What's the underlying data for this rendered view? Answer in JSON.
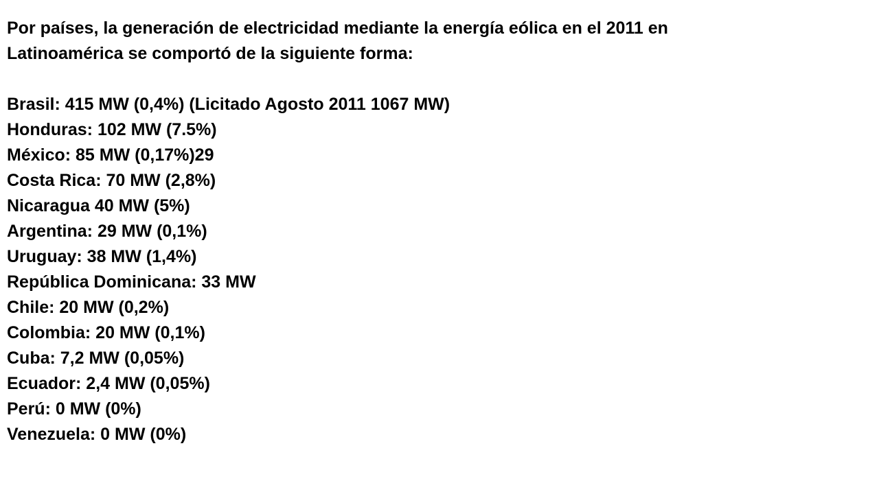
{
  "heading": {
    "lines": [
      "Por países, la generación de electricidad mediante la energía eólica en el 2011 en",
      "Latinoamérica se comportó de la siguiente forma:"
    ]
  },
  "items": [
    "Brasil: 415 MW (0,4%) (Licitado Agosto 2011 1067 MW)",
    "Honduras: 102 MW (7.5%)",
    "México: 85 MW (0,17%)29",
    "Costa Rica: 70 MW (2,8%)",
    "Nicaragua 40 MW (5%)",
    "Argentina: 29 MW (0,1%)",
    "Uruguay: 38 MW (1,4%)",
    "República Dominicana: 33 MW",
    "Chile: 20 MW (0,2%)",
    "Colombia: 20 MW (0,1%)",
    "Cuba: 7,2 MW (0,05%)",
    "Ecuador: 2,4 MW (0,05%)",
    "Perú: 0 MW (0%)",
    "Venezuela: 0 MW (0%)"
  ]
}
